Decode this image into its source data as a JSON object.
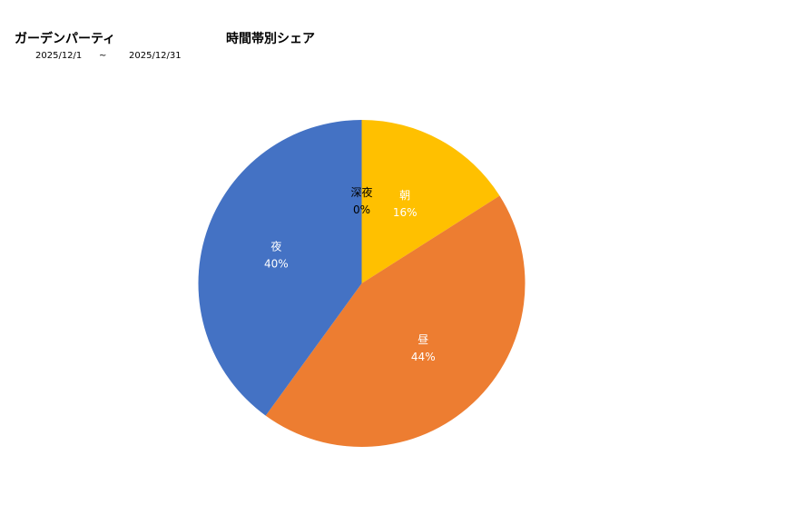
{
  "header": {
    "event_name": "ガーデンパーティ",
    "date_from": "2025/12/1",
    "date_separator": "~",
    "date_to": "2025/12/31"
  },
  "chart_data": {
    "type": "pie",
    "title": "時間帯別シェア",
    "categories": [
      "朝",
      "昼",
      "夜",
      "深夜"
    ],
    "values": [
      16,
      44,
      40,
      0
    ],
    "labels": [
      "16%",
      "44%",
      "40%",
      "0%"
    ],
    "colors": [
      "#FFC000",
      "#ED7D31",
      "#4472C4",
      "#A5A5A5"
    ],
    "label_colors": [
      "#ffffff",
      "#ffffff",
      "#ffffff",
      "#000000"
    ],
    "start_angle": "12 o'clock",
    "direction": "clockwise",
    "legend": "none"
  }
}
